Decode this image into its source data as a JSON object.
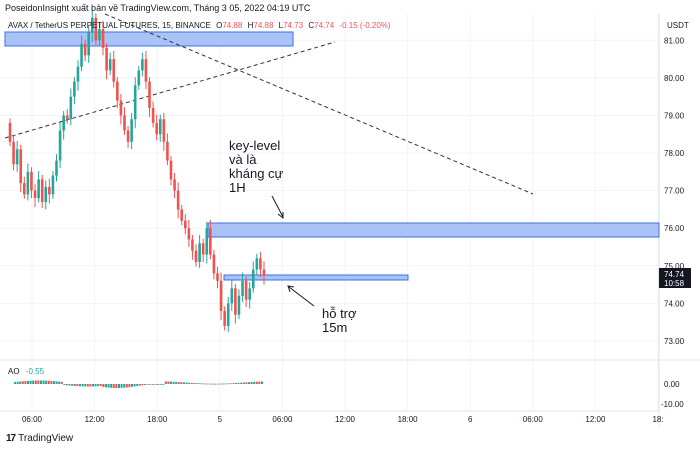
{
  "header": {
    "published": "PoseidonInsight xuất bản về TradingView.com, Tháng 3 05, 2022 04:19 UTC"
  },
  "symbol_bar": {
    "symbol": "AVAX / TetherUS PERPETUAL FUTURES, 15, BINANCE",
    "o_label": "O",
    "o_value": "74.88",
    "h_label": "H",
    "h_value": "74.88",
    "l_label": "L",
    "l_value": "74.73",
    "c_label": "C",
    "c_value": "74.74",
    "change": "-0.15 (-0.20%)"
  },
  "currency": "USDT",
  "price_tag": {
    "price": "74.74",
    "countdown": "10:58"
  },
  "annotations": {
    "key_level": [
      "key-level",
      "và là",
      "kháng cự",
      "1H"
    ],
    "support": [
      "hỗ trợ",
      "15m"
    ]
  },
  "indicator": {
    "name": "AO",
    "value": "-0.55"
  },
  "footer": {
    "brand": "TradingView"
  },
  "colors": {
    "up": "#26a69a",
    "down": "#ef5350",
    "zone_fill": "#a9c2f7",
    "zone_border": "#3d6fe0",
    "grid": "#f0f3fa",
    "axis_text": "#131722"
  },
  "chart_data": {
    "type": "candlestick",
    "x_tick_labels": [
      "06:00",
      "12:00",
      "18:00",
      "5",
      "06:00",
      "12:00",
      "18:00",
      "6",
      "06:00",
      "12:00",
      "18:"
    ],
    "y_tick_labels": [
      "81.00",
      "80.00",
      "79.00",
      "78.00",
      "77.00",
      "76.00",
      "75.00",
      "74.00",
      "73.00"
    ],
    "ylim": [
      72.6,
      81.7
    ],
    "ao_tick_labels": [
      "0.00",
      "-10.00"
    ],
    "candles_approx": [
      [
        78.8,
        78.3
      ],
      [
        78.3,
        77.7
      ],
      [
        77.7,
        78.1
      ],
      [
        78.1,
        77.2
      ],
      [
        77.2,
        76.9
      ],
      [
        76.9,
        77.5
      ],
      [
        77.5,
        77.0
      ],
      [
        77.0,
        76.8
      ],
      [
        76.8,
        77.3
      ],
      [
        77.3,
        76.7
      ],
      [
        76.7,
        77.1
      ],
      [
        77.1,
        76.9
      ],
      [
        76.9,
        77.4
      ],
      [
        77.4,
        77.8
      ],
      [
        77.8,
        78.6
      ],
      [
        78.6,
        79.0
      ],
      [
        79.0,
        78.9
      ],
      [
        78.9,
        79.5
      ],
      [
        79.5,
        79.9
      ],
      [
        79.9,
        80.3
      ],
      [
        80.3,
        80.9
      ],
      [
        80.9,
        80.6
      ],
      [
        80.6,
        81.2
      ],
      [
        81.2,
        81.6
      ],
      [
        81.6,
        81.0
      ],
      [
        81.0,
        81.3
      ],
      [
        81.3,
        80.8
      ],
      [
        80.8,
        80.2
      ],
      [
        80.2,
        80.5
      ],
      [
        80.5,
        79.9
      ],
      [
        79.9,
        79.4
      ],
      [
        79.4,
        79.0
      ],
      [
        79.0,
        78.6
      ],
      [
        78.6,
        78.3
      ],
      [
        78.3,
        78.9
      ],
      [
        78.9,
        79.8
      ],
      [
        79.8,
        80.2
      ],
      [
        80.2,
        80.5
      ],
      [
        80.5,
        79.9
      ],
      [
        79.9,
        79.2
      ],
      [
        79.2,
        78.8
      ],
      [
        78.8,
        78.5
      ],
      [
        78.5,
        78.9
      ],
      [
        78.9,
        78.3
      ],
      [
        78.3,
        77.8
      ],
      [
        77.8,
        77.3
      ],
      [
        77.3,
        77.0
      ],
      [
        77.0,
        76.5
      ],
      [
        76.5,
        76.2
      ],
      [
        76.2,
        76.0
      ],
      [
        76.0,
        75.7
      ],
      [
        75.7,
        75.4
      ],
      [
        75.4,
        75.1
      ],
      [
        75.1,
        75.6
      ],
      [
        75.6,
        75.3
      ],
      [
        75.3,
        76.0
      ],
      [
        76.0,
        75.3
      ],
      [
        75.3,
        74.8
      ],
      [
        74.8,
        74.6
      ],
      [
        74.6,
        73.8
      ],
      [
        73.8,
        73.4
      ],
      [
        73.4,
        74.0
      ],
      [
        74.0,
        74.4
      ],
      [
        74.4,
        73.7
      ],
      [
        73.7,
        74.2
      ],
      [
        74.2,
        74.6
      ],
      [
        74.6,
        74.1
      ],
      [
        74.1,
        74.4
      ],
      [
        74.4,
        74.9
      ],
      [
        74.9,
        75.2
      ],
      [
        75.2,
        74.9
      ],
      [
        74.9,
        74.74
      ]
    ]
  }
}
